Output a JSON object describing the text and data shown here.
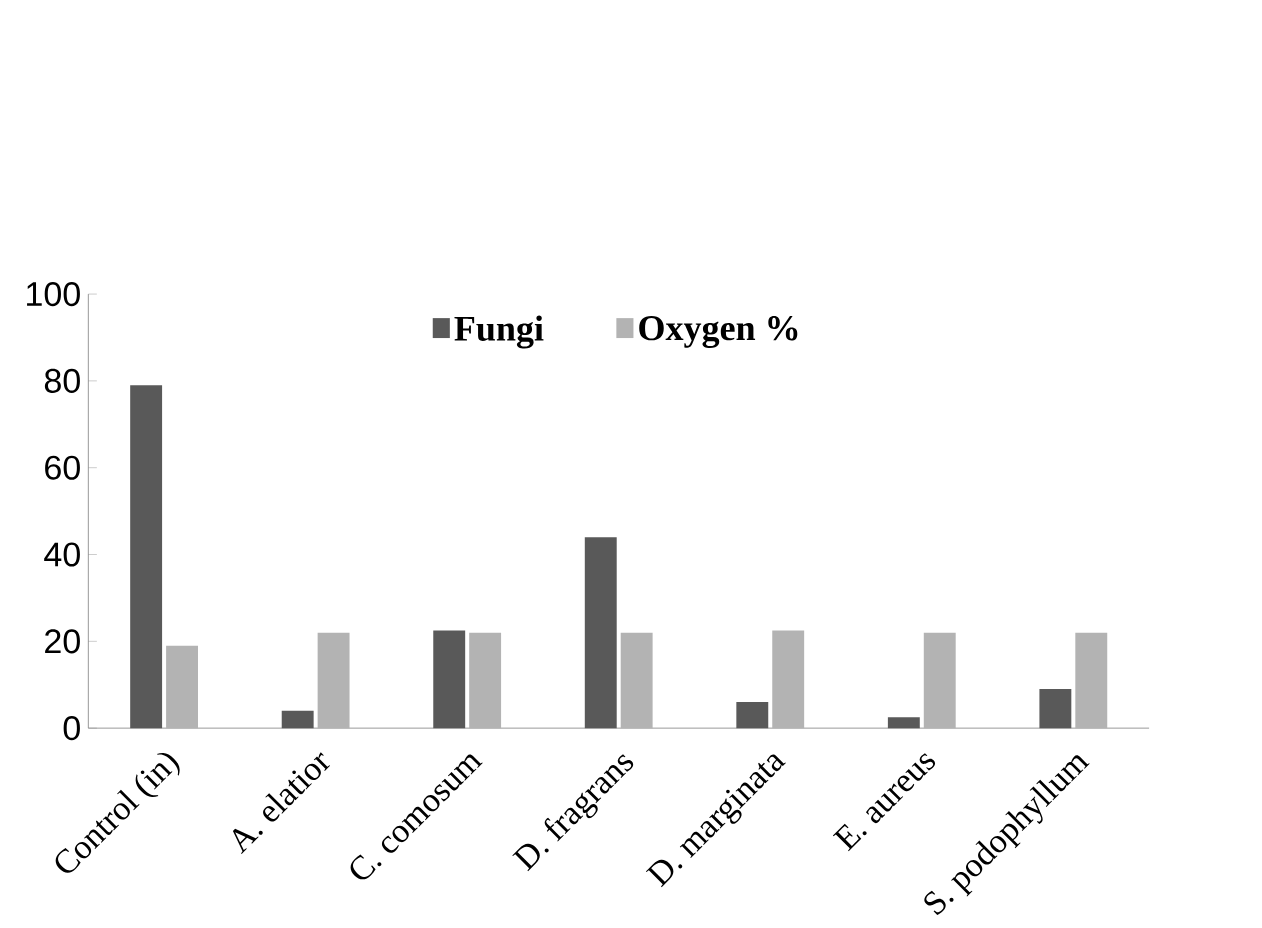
{
  "chart_data": {
    "type": "bar",
    "categories": [
      "Control (in)",
      "A. elatior",
      "C. comosum",
      "D. fragrans",
      "D. marginata",
      "E. aureus",
      "S. podophyllum"
    ],
    "series": [
      {
        "name": "Fungi",
        "color": "#595959",
        "values": [
          79,
          4,
          22.5,
          44,
          6,
          2.5,
          9
        ]
      },
      {
        "name": "Oxygen %",
        "color": "#b3b3b3",
        "values": [
          19,
          22,
          22,
          22,
          22.5,
          22,
          22
        ]
      }
    ],
    "ylim": [
      0,
      100
    ],
    "yticks": [
      0,
      20,
      40,
      60,
      80,
      100
    ],
    "legend": "top",
    "grid": false
  }
}
